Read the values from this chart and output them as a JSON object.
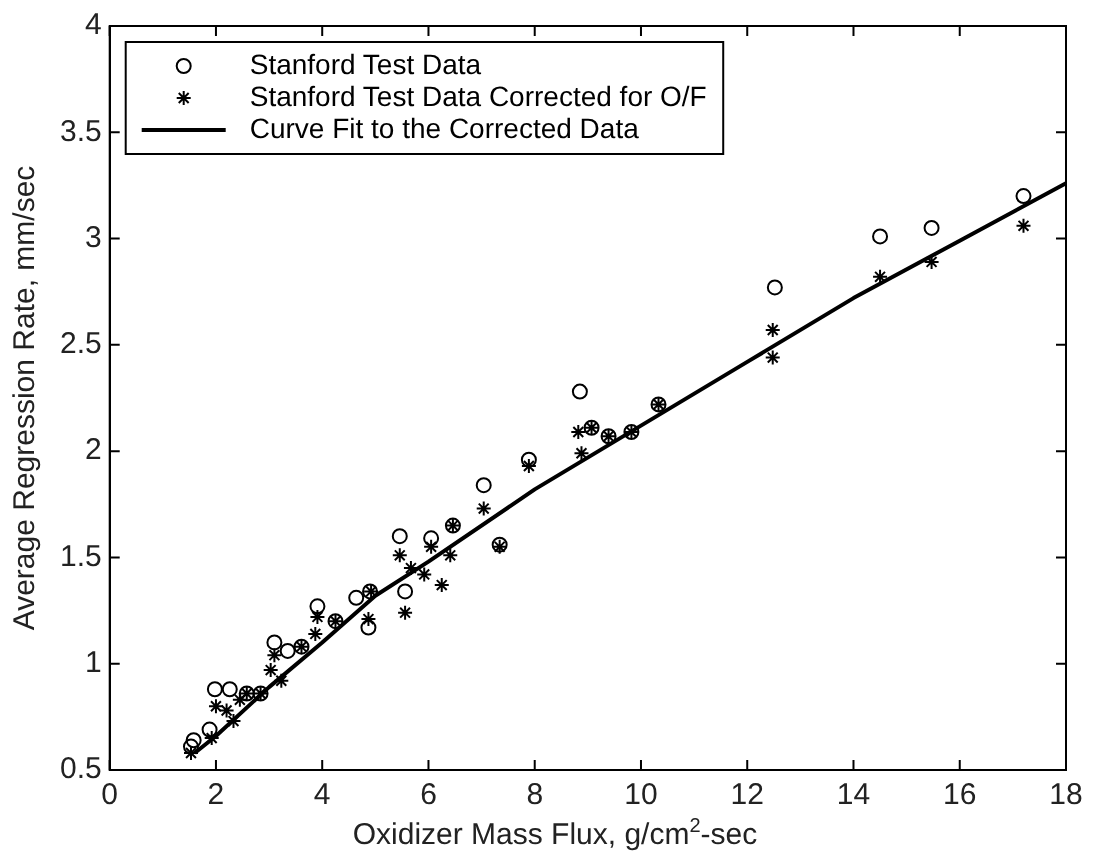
{
  "chart_data": {
    "type": "scatter",
    "xlabel": "Oxidizer Mass Flux, g/cm$^{2}$-sec",
    "ylabel": "Average Regression Rate, mm/sec",
    "xlim": [
      0,
      18
    ],
    "xticks": [
      0,
      2,
      4,
      6,
      8,
      10,
      12,
      14,
      16,
      18
    ],
    "ylim": [
      0.5,
      4
    ],
    "yticks": [
      0.5,
      1,
      1.5,
      2,
      2.5,
      3,
      3.5,
      4
    ],
    "legend": "top left",
    "grid": false,
    "series": [
      {
        "name": "Stanford Test Data",
        "color": "#000000",
        "marker": "circle",
        "x": [
          1.53,
          1.58,
          1.88,
          1.98,
          2.26,
          2.58,
          2.84,
          3.1,
          3.35,
          3.61,
          3.91,
          4.25,
          4.64,
          4.87,
          4.9,
          5.46,
          5.56,
          6.05,
          6.46,
          7.04,
          7.34,
          7.89,
          8.85,
          9.07,
          9.39,
          9.82,
          10.33,
          12.52,
          14.5,
          15.47,
          17.2
        ],
        "values": [
          0.61,
          0.64,
          0.69,
          0.88,
          0.88,
          0.86,
          0.86,
          1.1,
          1.06,
          1.08,
          1.27,
          1.2,
          1.31,
          1.17,
          1.34,
          1.6,
          1.34,
          1.59,
          1.65,
          1.84,
          1.56,
          1.96,
          2.28,
          2.11,
          2.07,
          2.09,
          2.22,
          2.77,
          3.01,
          3.05,
          3.2
        ]
      },
      {
        "name": "Stanford Test Data Corrected for O/F",
        "color": "#000000",
        "marker": "cross",
        "x": [
          1.53,
          1.92,
          2.0,
          2.2,
          2.33,
          2.45,
          2.58,
          2.84,
          3.03,
          3.1,
          3.23,
          3.61,
          3.87,
          3.91,
          4.25,
          4.87,
          4.92,
          5.46,
          5.56,
          5.67,
          5.92,
          6.05,
          6.25,
          6.41,
          6.46,
          7.04,
          7.34,
          7.89,
          8.82,
          8.88,
          9.07,
          9.39,
          9.82,
          10.33,
          12.48,
          12.48,
          14.5,
          15.47,
          17.2
        ],
        "values": [
          0.58,
          0.65,
          0.8,
          0.78,
          0.73,
          0.83,
          0.86,
          0.86,
          0.97,
          1.04,
          0.92,
          1.08,
          1.14,
          1.22,
          1.2,
          1.21,
          1.34,
          1.51,
          1.24,
          1.45,
          1.42,
          1.55,
          1.37,
          1.51,
          1.65,
          1.73,
          1.55,
          1.93,
          2.09,
          1.99,
          2.11,
          2.07,
          2.09,
          2.22,
          2.57,
          2.44,
          2.82,
          2.89,
          3.06
        ]
      },
      {
        "name": "Curve Fit to the Corrected Data",
        "color": "#000000",
        "type": "line",
        "marker": "none",
        "x": [
          1.6,
          2,
          3,
          4,
          5,
          6,
          8,
          10,
          12,
          14,
          16,
          18
        ],
        "values": [
          0.58,
          0.66,
          0.89,
          1.1,
          1.32,
          1.48,
          1.82,
          2.12,
          2.42,
          2.72,
          2.99,
          3.26
        ]
      }
    ]
  }
}
